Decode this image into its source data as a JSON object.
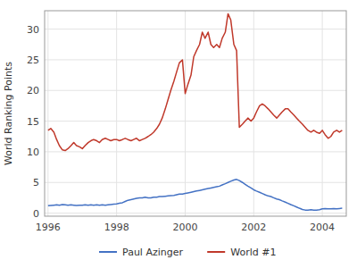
{
  "chart_data": {
    "type": "line",
    "ylabel": "World Ranking Points",
    "xlim": [
      1995.9,
      2004.7
    ],
    "ylim": [
      -0.5,
      33
    ],
    "xticks": [
      1996,
      1998,
      2000,
      2002,
      2004
    ],
    "yticks": [
      0,
      5,
      10,
      15,
      20,
      25,
      30
    ],
    "grid": true,
    "legend": "bottom",
    "x": [
      1996.0,
      1996.08,
      1996.17,
      1996.25,
      1996.33,
      1996.42,
      1996.5,
      1996.58,
      1996.67,
      1996.75,
      1996.83,
      1996.92,
      1997.0,
      1997.08,
      1997.17,
      1997.25,
      1997.33,
      1997.42,
      1997.5,
      1997.58,
      1997.67,
      1997.75,
      1997.83,
      1997.92,
      1998.0,
      1998.08,
      1998.17,
      1998.25,
      1998.33,
      1998.42,
      1998.5,
      1998.58,
      1998.67,
      1998.75,
      1998.83,
      1998.92,
      1999.0,
      1999.08,
      1999.17,
      1999.25,
      1999.33,
      1999.42,
      1999.5,
      1999.58,
      1999.67,
      1999.75,
      1999.83,
      1999.92,
      2000.0,
      2000.08,
      2000.17,
      2000.25,
      2000.33,
      2000.42,
      2000.5,
      2000.58,
      2000.67,
      2000.75,
      2000.83,
      2000.92,
      2001.0,
      2001.08,
      2001.17,
      2001.25,
      2001.33,
      2001.42,
      2001.5,
      2001.58,
      2001.67,
      2001.75,
      2001.83,
      2001.92,
      2002.0,
      2002.08,
      2002.17,
      2002.25,
      2002.33,
      2002.42,
      2002.5,
      2002.58,
      2002.67,
      2002.75,
      2002.83,
      2002.92,
      2003.0,
      2003.08,
      2003.17,
      2003.25,
      2003.33,
      2003.42,
      2003.5,
      2003.58,
      2003.67,
      2003.75,
      2003.83,
      2003.92,
      2004.0,
      2004.08,
      2004.17,
      2004.25,
      2004.33,
      2004.42,
      2004.5,
      2004.58
    ],
    "series": [
      {
        "name": "Paul Azinger",
        "color": "#4472c4",
        "values": [
          1.2,
          1.25,
          1.3,
          1.35,
          1.3,
          1.4,
          1.35,
          1.3,
          1.35,
          1.3,
          1.25,
          1.3,
          1.3,
          1.35,
          1.3,
          1.35,
          1.3,
          1.35,
          1.3,
          1.35,
          1.3,
          1.35,
          1.4,
          1.45,
          1.5,
          1.6,
          1.7,
          1.9,
          2.1,
          2.2,
          2.3,
          2.4,
          2.5,
          2.5,
          2.6,
          2.5,
          2.5,
          2.6,
          2.6,
          2.7,
          2.7,
          2.75,
          2.8,
          2.85,
          2.9,
          3.0,
          3.1,
          3.1,
          3.2,
          3.3,
          3.4,
          3.5,
          3.6,
          3.7,
          3.8,
          3.9,
          4.0,
          4.1,
          4.2,
          4.3,
          4.4,
          4.6,
          4.8,
          5.0,
          5.2,
          5.4,
          5.5,
          5.3,
          5.0,
          4.7,
          4.4,
          4.1,
          3.8,
          3.6,
          3.4,
          3.2,
          3.0,
          2.8,
          2.7,
          2.5,
          2.3,
          2.2,
          2.0,
          1.8,
          1.6,
          1.4,
          1.2,
          1.0,
          0.8,
          0.6,
          0.5,
          0.5,
          0.55,
          0.5,
          0.5,
          0.55,
          0.7,
          0.75,
          0.7,
          0.7,
          0.75,
          0.7,
          0.75,
          0.8
        ]
      },
      {
        "name": "World #1",
        "color": "#c0392b",
        "values": [
          13.5,
          13.8,
          13.2,
          12.0,
          11.0,
          10.3,
          10.2,
          10.5,
          11.0,
          11.5,
          11.0,
          10.8,
          10.5,
          11.0,
          11.5,
          11.8,
          12.0,
          11.8,
          11.5,
          12.0,
          12.2,
          12.0,
          11.8,
          12.0,
          12.0,
          11.8,
          12.0,
          12.2,
          12.0,
          11.8,
          12.0,
          12.2,
          11.8,
          12.0,
          12.2,
          12.5,
          12.8,
          13.2,
          13.8,
          14.5,
          15.5,
          17.0,
          18.5,
          20.0,
          21.5,
          23.0,
          24.5,
          25.0,
          19.5,
          21.0,
          22.5,
          25.5,
          26.5,
          27.5,
          29.5,
          28.5,
          29.5,
          27.5,
          27.0,
          27.5,
          27.0,
          28.5,
          29.5,
          32.5,
          31.5,
          27.5,
          26.5,
          14.0,
          14.5,
          15.0,
          15.5,
          15.0,
          15.5,
          16.5,
          17.5,
          17.8,
          17.5,
          17.0,
          16.5,
          16.0,
          15.5,
          16.0,
          16.5,
          17.0,
          17.0,
          16.5,
          16.0,
          15.5,
          15.0,
          14.5,
          14.0,
          13.5,
          13.2,
          13.5,
          13.2,
          13.0,
          13.5,
          12.8,
          12.2,
          12.5,
          13.2,
          13.5,
          13.2,
          13.5
        ]
      }
    ]
  }
}
